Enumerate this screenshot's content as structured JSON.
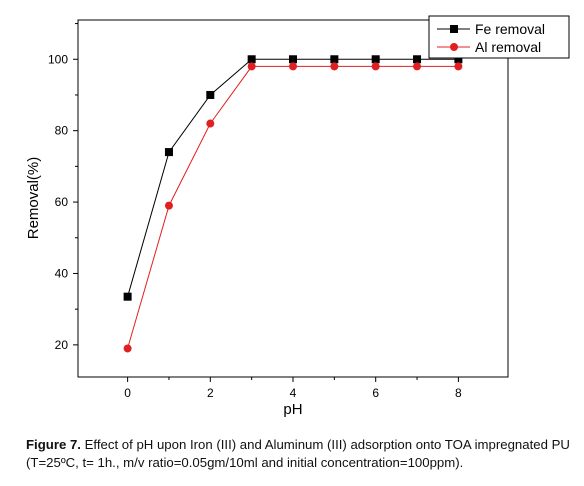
{
  "chart_data": {
    "type": "line",
    "x": [
      0,
      1,
      2,
      3,
      4,
      5,
      6,
      7,
      8
    ],
    "series": [
      {
        "name": "Fe removal",
        "values": [
          33.5,
          74,
          90,
          100,
          100,
          100,
          100,
          100,
          100
        ],
        "color": "#000000",
        "marker": "square"
      },
      {
        "name": "Al removal",
        "values": [
          19,
          59,
          82,
          98,
          98,
          98,
          98,
          98,
          98
        ],
        "color": "#e02020",
        "marker": "circle"
      }
    ],
    "xlabel": "pH",
    "ylabel": "Removal(%)",
    "xlim": [
      -1.2,
      9.2
    ],
    "ylim": [
      11,
      111
    ],
    "xticks": [
      "0",
      "2",
      "4",
      "6",
      "8"
    ],
    "yticks": [
      "20",
      "40",
      "60",
      "80",
      "100"
    ],
    "grid": false,
    "legend_position": "top-right"
  },
  "caption": {
    "label": "Figure 7.",
    "text": "Effect of pH upon Iron (III) and Aluminum (III) adsorption onto TOA impregnated PU (T=25ºC, t= 1h., m/v ratio=0.05gm/10ml and initial concentration=100ppm)."
  }
}
